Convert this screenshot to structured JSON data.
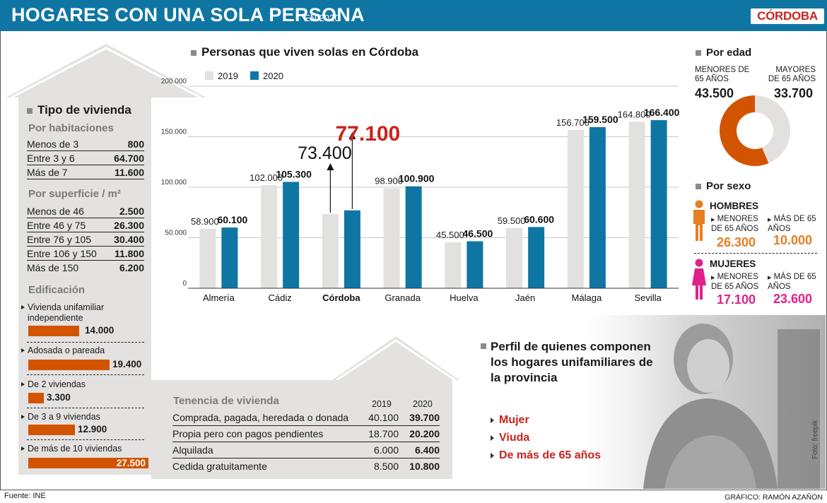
{
  "header": {
    "title": "HOGARES CON UNA SOLA PERSONA",
    "subtitle": "EN 2020",
    "logo": "CÓRDOBA"
  },
  "vivienda": {
    "title": "Tipo de vivienda",
    "habitaciones": {
      "title": "Por habitaciones",
      "rows": [
        {
          "label": "Menos de 3",
          "value": "800"
        },
        {
          "label": "Entre 3 y 6",
          "value": "64.700"
        },
        {
          "label": "Más de 7",
          "value": "11.600"
        }
      ]
    },
    "superficie": {
      "title": "Por superficie / m²",
      "rows": [
        {
          "label": "Menos de 46",
          "value": "2.500"
        },
        {
          "label": "Entre 46 y 75",
          "value": "26.300"
        },
        {
          "label": "Entre 76 y 105",
          "value": "30.400"
        },
        {
          "label": "Entre 106 y 150",
          "value": "11.800"
        },
        {
          "label": "Más de 150",
          "value": "6.200"
        }
      ]
    },
    "edificacion": {
      "title": "Edificación",
      "items": [
        {
          "label": "Vivienda unifamiliar independiente",
          "value": 14000,
          "display": "14.000"
        },
        {
          "label": "Adosada o pareada",
          "value": 19400,
          "display": "19.400"
        },
        {
          "label": "De 2 viviendas",
          "value": 3300,
          "display": "3.300"
        },
        {
          "label": "De 3 a 9 viviendas",
          "value": 12900,
          "display": "12.900"
        },
        {
          "label": "De más de 10 viviendas",
          "value": 27500,
          "display": "27.500"
        }
      ]
    }
  },
  "tenencia": {
    "title": "Tenencia de vivienda",
    "col2019": "2019",
    "col2020": "2020",
    "rows": [
      {
        "label": "Comprada, pagada, heredada o donada",
        "v2019": "40.100",
        "v2020": "39.700"
      },
      {
        "label": "Propia pero con pagos pendientes",
        "v2019": "18.700",
        "v2020": "20.200"
      },
      {
        "label": "Alquilada",
        "v2019": "6.000",
        "v2020": "6.400"
      },
      {
        "label": "Cedida gratuitamente",
        "v2019": "8.500",
        "v2020": "10.800"
      }
    ]
  },
  "chart_data": {
    "type": "bar",
    "title": "Personas que viven solas en Córdoba",
    "categories": [
      "Almería",
      "Cádiz",
      "Córdoba",
      "Granada",
      "Huelva",
      "Jaén",
      "Málaga",
      "Sevilla"
    ],
    "series": [
      {
        "name": "2019",
        "color": "#e3e1df",
        "values": [
          58900,
          102000,
          73400,
          98900,
          45500,
          59500,
          156700,
          164800
        ],
        "labels": [
          "58.900",
          "102.000",
          "",
          "98.900",
          "45.500",
          "59.500",
          "156.700",
          "164.800"
        ]
      },
      {
        "name": "2020",
        "color": "#0f76a4",
        "values": [
          60100,
          105300,
          77100,
          100900,
          46500,
          60600,
          159500,
          166400
        ],
        "labels": [
          "60.100",
          "105.300",
          "",
          "100.900",
          "46.500",
          "60.600",
          "159.500",
          "166.400"
        ]
      }
    ],
    "ylim": [
      0,
      200000
    ],
    "yticks": [
      "0",
      "50.000",
      "100.000",
      "150.000",
      "200.000"
    ],
    "highlight": {
      "category": "Córdoba",
      "v2019": "73.400",
      "v2020": "77.100",
      "color": "#c9231e"
    }
  },
  "edad": {
    "title": "Por edad",
    "menores_label": "MENORES DE 65 AÑOS",
    "mayores_label": "MAYORES DE 65 AÑOS",
    "menores": 43500,
    "mayores": 33700,
    "menores_display": "43.500",
    "mayores_display": "33.700",
    "menores_color": "#d35400",
    "mayores_color": "#e3e1df"
  },
  "sexo": {
    "title": "Por sexo",
    "hombres": {
      "label": "HOMBRES",
      "menores_label": "MENORES DE 65 AÑOS",
      "mayores_label": "MÁS DE 65 AÑOS",
      "menores": "26.300",
      "mayores": "10.000",
      "color": "#e67e22"
    },
    "mujeres": {
      "label": "MUJERES",
      "menores_label": "MENORES DE 65 AÑOS",
      "mayores_label": "MÁS DE 65 AÑOS",
      "menores": "17.100",
      "mayores": "23.600",
      "color": "#e0218a"
    }
  },
  "perfil": {
    "title": "Perfil de quienes componen los hogares unifamiliares de la provincia",
    "items": [
      "Mujer",
      "Viuda",
      "De más de 65 años"
    ]
  },
  "photo_credit": "Foto: freepik",
  "footer": {
    "source": "Fuente: INE",
    "credit": "GRÁFICO: RAMÓN AZAÑÓN"
  }
}
